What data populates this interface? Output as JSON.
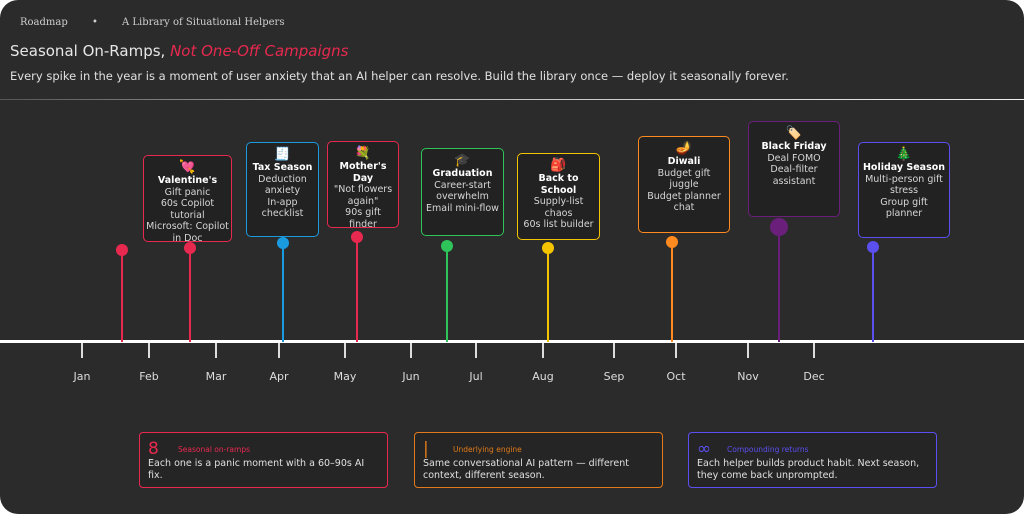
{
  "header": {
    "crumb1": "Roadmap",
    "sep": "•",
    "crumb2": "A Library of Situational Helpers",
    "title_main": "Seasonal On-Ramps, ",
    "title_accent": "Not One-Off Campaigns",
    "subtitle": "Every spike in the year is a moment of user anxiety that an AI helper can resolve. Build the library once — deploy it seasonally forever."
  },
  "months": [
    "Jan",
    "Feb",
    "Mar",
    "Apr",
    "May",
    "Jun",
    "Jul",
    "Aug",
    "Sep",
    "Oct",
    "Nov",
    "Dec"
  ],
  "events": [
    {
      "icon": "💘",
      "title": "Valentine's",
      "lines": [
        "Gift panic",
        "60s Copilot",
        "tutorial",
        "Microsoft: Copilot",
        "in Doc"
      ],
      "color": "#e8294f"
    },
    {
      "icon": "🧾",
      "title": "Tax Season",
      "lines": [
        "Deduction",
        "anxiety",
        "In-app",
        "checklist"
      ],
      "color": "#1a9be0"
    },
    {
      "icon": "💐",
      "title": "Mother's Day",
      "lines": [
        "\"Not flowers",
        "again\"",
        "90s gift finder"
      ],
      "color": "#e8294f"
    },
    {
      "icon": "🎓",
      "title": "Graduation",
      "lines": [
        "Career-start",
        "overwhelm",
        "Email mini-flow"
      ],
      "color": "#2ec45a"
    },
    {
      "icon": "🎒",
      "title": "Back to School",
      "lines": [
        "Supply-list",
        "chaos",
        "60s list builder"
      ],
      "color": "#f5c400"
    },
    {
      "icon": "🪔",
      "title": "Diwali",
      "lines": [
        "Budget gift",
        "juggle",
        "Budget planner",
        "chat"
      ],
      "color": "#ff8a1f"
    },
    {
      "icon": "🏷️",
      "title": "Black Friday",
      "lines": [
        "Deal FOMO",
        "Deal-filter",
        "assistant"
      ],
      "color": "#6a1f7a"
    },
    {
      "icon": "🎄",
      "title": "Holiday Season",
      "lines": [
        "Multi-person gift",
        "stress",
        "Group gift",
        "planner"
      ],
      "color": "#5b4ff0"
    }
  ],
  "stats": [
    {
      "big": "8",
      "label": "Seasonal on-ramps",
      "text": "Each one is a panic moment with a 60–90s AI fix.",
      "color": "#e8294f"
    },
    {
      "big": "|",
      "label": "Underlying engine",
      "text": "Same conversational AI pattern — different context, different season.",
      "color": "#e07a1a"
    },
    {
      "big": "∞",
      "label": "Compounding returns",
      "text": "Each helper builds product habit. Next season, they come back unprompted.",
      "color": "#5b4ff0"
    }
  ]
}
